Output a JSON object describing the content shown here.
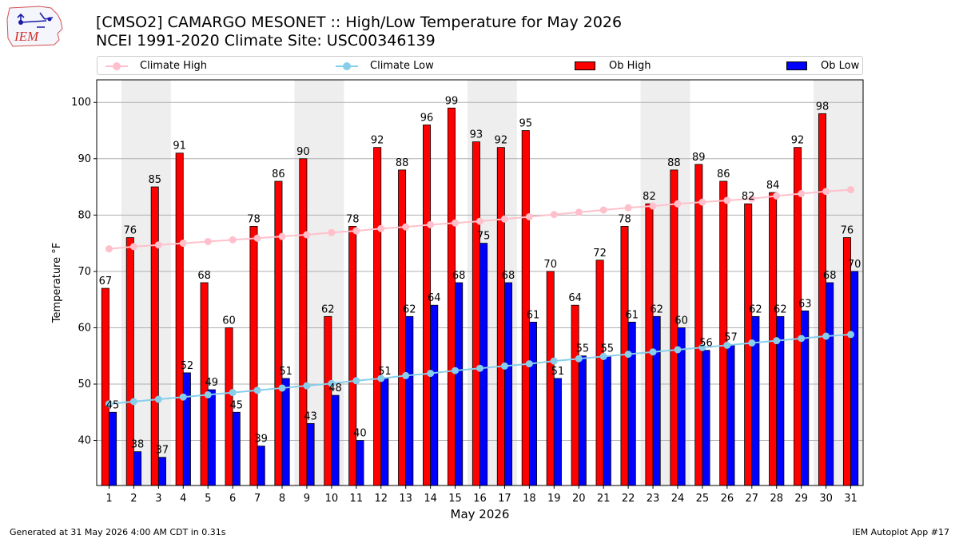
{
  "header": {
    "logo_text": "IEM",
    "title_line1": "[CMSO2] CAMARGO MESONET :: High/Low Temperature for May 2026",
    "title_line2": "NCEI 1991-2020 Climate Site: USC00346139"
  },
  "legend": {
    "location": "top",
    "items": [
      {
        "label": "Climate High",
        "color": "#ffc0cb",
        "kind": "line"
      },
      {
        "label": "Climate Low",
        "color": "#87ceeb",
        "kind": "line"
      },
      {
        "label": "Ob High",
        "color": "#ff0000",
        "kind": "bar"
      },
      {
        "label": "Ob Low",
        "color": "#0000ff",
        "kind": "bar"
      }
    ]
  },
  "footer": {
    "left": "Generated at 31 May 2026 4:00 AM CDT in 0.31s",
    "right": "IEM Autoplot App #17"
  },
  "chart_data": {
    "type": "bar",
    "title": "[CMSO2] CAMARGO MESONET :: High/Low Temperature for May 2026",
    "subtitle": "NCEI 1991-2020 Climate Site: USC00346139",
    "xlabel": "May 2026",
    "ylabel": "Temperature °F",
    "ylim": [
      32,
      104
    ],
    "yticks": [
      40,
      50,
      60,
      70,
      80,
      90,
      100
    ],
    "grid": true,
    "weekend_shaded_days": [
      2,
      3,
      9,
      10,
      16,
      17,
      23,
      24,
      30,
      31
    ],
    "categories": [
      "1",
      "2",
      "3",
      "4",
      "5",
      "6",
      "7",
      "8",
      "9",
      "10",
      "11",
      "12",
      "13",
      "14",
      "15",
      "16",
      "17",
      "18",
      "19",
      "20",
      "21",
      "22",
      "23",
      "24",
      "25",
      "26",
      "27",
      "28",
      "29",
      "30",
      "31"
    ],
    "series": [
      {
        "name": "Ob High",
        "type": "bar",
        "color": "#ff0000",
        "values": [
          67,
          76,
          85,
          91,
          68,
          60,
          78,
          86,
          90,
          62,
          78,
          92,
          88,
          96,
          99,
          93,
          92,
          95,
          70,
          64,
          72,
          78,
          82,
          88,
          89,
          86,
          82,
          84,
          92,
          98,
          76
        ]
      },
      {
        "name": "Ob Low",
        "type": "bar",
        "color": "#0000ff",
        "values": [
          45,
          38,
          37,
          52,
          49,
          45,
          39,
          51,
          43,
          48,
          40,
          51,
          62,
          64,
          68,
          75,
          68,
          61,
          51,
          55,
          55,
          61,
          62,
          60,
          56,
          57,
          62,
          62,
          63,
          68,
          70
        ]
      },
      {
        "name": "Climate High",
        "type": "line",
        "color": "#ffc0cb",
        "values": [
          74.0,
          74.4,
          74.7,
          75.0,
          75.3,
          75.6,
          75.9,
          76.2,
          76.5,
          76.9,
          77.2,
          77.6,
          77.9,
          78.3,
          78.6,
          78.9,
          79.3,
          79.7,
          80.1,
          80.5,
          80.9,
          81.3,
          81.6,
          82.0,
          82.3,
          82.6,
          82.9,
          83.4,
          83.8,
          84.2,
          84.5
        ]
      },
      {
        "name": "Climate Low",
        "type": "line",
        "color": "#87ceeb",
        "values": [
          46.5,
          46.9,
          47.3,
          47.7,
          48.1,
          48.5,
          48.9,
          49.3,
          49.7,
          50.1,
          50.6,
          51.0,
          51.5,
          51.9,
          52.4,
          52.8,
          53.2,
          53.6,
          54.1,
          54.5,
          54.9,
          55.3,
          55.7,
          56.1,
          56.5,
          56.9,
          57.3,
          57.7,
          58.1,
          58.5,
          58.8
        ]
      }
    ]
  }
}
